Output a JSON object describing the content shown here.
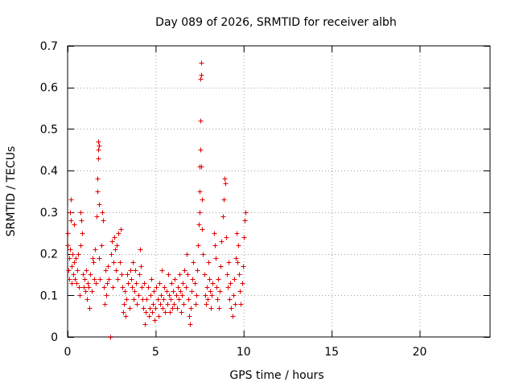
{
  "chart_data": {
    "type": "scatter",
    "title": "Day 089 of 2026, SRMTID for receiver albh",
    "xlabel": "GPS time / hours",
    "ylabel": "SRMTID / TECUs",
    "xlim": [
      0,
      24
    ],
    "ylim": [
      0,
      0.7
    ],
    "xticks": [
      0,
      5,
      10,
      15,
      20
    ],
    "xtick_labels": [
      "0",
      "5",
      "10",
      "15",
      "20"
    ],
    "yticks": [
      0,
      0.1,
      0.2,
      0.3,
      0.4,
      0.5,
      0.6,
      0.7
    ],
    "ytick_labels": [
      "0",
      "0.1",
      "0.2",
      "0.3",
      "0.4",
      "0.5",
      "0.6",
      "0.7"
    ],
    "grid": true,
    "marker": "+",
    "color": "#e00000",
    "series": [
      {
        "name": "SRMTID",
        "points": [
          [
            0.0,
            0.22
          ],
          [
            0.02,
            0.25
          ],
          [
            0.05,
            0.16
          ],
          [
            0.08,
            0.14
          ],
          [
            0.1,
            0.19
          ],
          [
            0.12,
            0.21
          ],
          [
            0.15,
            0.3
          ],
          [
            0.18,
            0.33
          ],
          [
            0.2,
            0.28
          ],
          [
            0.22,
            0.13
          ],
          [
            0.25,
            0.17
          ],
          [
            0.28,
            0.2
          ],
          [
            0.3,
            0.15
          ],
          [
            0.35,
            0.27
          ],
          [
            0.38,
            0.18
          ],
          [
            0.4,
            0.14
          ],
          [
            0.45,
            0.19
          ],
          [
            0.5,
            0.13
          ],
          [
            0.55,
            0.16
          ],
          [
            0.6,
            0.2
          ],
          [
            0.65,
            0.12
          ],
          [
            0.7,
            0.1
          ],
          [
            0.72,
            0.22
          ],
          [
            0.75,
            0.3
          ],
          [
            0.78,
            0.28
          ],
          [
            0.8,
            0.25
          ],
          [
            0.85,
            0.15
          ],
          [
            0.9,
            0.12
          ],
          [
            0.95,
            0.14
          ],
          [
            1.0,
            0.11
          ],
          [
            1.05,
            0.16
          ],
          [
            1.1,
            0.09
          ],
          [
            1.15,
            0.13
          ],
          [
            1.2,
            0.12
          ],
          [
            1.25,
            0.07
          ],
          [
            1.3,
            0.15
          ],
          [
            1.35,
            0.11
          ],
          [
            1.4,
            0.19
          ],
          [
            1.45,
            0.18
          ],
          [
            1.5,
            0.14
          ],
          [
            1.55,
            0.21
          ],
          [
            1.6,
            0.13
          ],
          [
            1.65,
            0.29
          ],
          [
            1.68,
            0.35
          ],
          [
            1.7,
            0.38
          ],
          [
            1.72,
            0.43
          ],
          [
            1.74,
            0.45
          ],
          [
            1.75,
            0.47
          ],
          [
            1.76,
            0.46
          ],
          [
            1.78,
            0.32
          ],
          [
            1.8,
            0.19
          ],
          [
            1.85,
            0.14
          ],
          [
            1.9,
            0.22
          ],
          [
            1.95,
            0.3
          ],
          [
            2.0,
            0.28
          ],
          [
            2.05,
            0.12
          ],
          [
            2.1,
            0.08
          ],
          [
            2.15,
            0.16
          ],
          [
            2.2,
            0.1
          ],
          [
            2.25,
            0.13
          ],
          [
            2.3,
            0.17
          ],
          [
            2.35,
            0.14
          ],
          [
            2.4,
            0.0
          ],
          [
            2.45,
            0.2
          ],
          [
            2.5,
            0.23
          ],
          [
            2.55,
            0.12
          ],
          [
            2.6,
            0.18
          ],
          [
            2.65,
            0.24
          ],
          [
            2.7,
            0.21
          ],
          [
            2.75,
            0.16
          ],
          [
            2.8,
            0.22
          ],
          [
            2.85,
            0.14
          ],
          [
            2.9,
            0.25
          ],
          [
            2.95,
            0.18
          ],
          [
            3.0,
            0.26
          ],
          [
            3.05,
            0.15
          ],
          [
            3.1,
            0.12
          ],
          [
            3.15,
            0.06
          ],
          [
            3.2,
            0.08
          ],
          [
            3.25,
            0.11
          ],
          [
            3.3,
            0.05
          ],
          [
            3.35,
            0.09
          ],
          [
            3.4,
            0.15
          ],
          [
            3.45,
            0.13
          ],
          [
            3.5,
            0.07
          ],
          [
            3.55,
            0.16
          ],
          [
            3.6,
            0.14
          ],
          [
            3.65,
            0.12
          ],
          [
            3.7,
            0.18
          ],
          [
            3.75,
            0.09
          ],
          [
            3.8,
            0.11
          ],
          [
            3.85,
            0.16
          ],
          [
            3.9,
            0.13
          ],
          [
            3.95,
            0.08
          ],
          [
            4.0,
            0.1
          ],
          [
            4.05,
            0.15
          ],
          [
            4.1,
            0.21
          ],
          [
            4.15,
            0.17
          ],
          [
            4.2,
            0.12
          ],
          [
            4.25,
            0.09
          ],
          [
            4.3,
            0.07
          ],
          [
            4.35,
            0.13
          ],
          [
            4.4,
            0.03
          ],
          [
            4.45,
            0.06
          ],
          [
            4.5,
            0.09
          ],
          [
            4.55,
            0.12
          ],
          [
            4.6,
            0.05
          ],
          [
            4.65,
            0.07
          ],
          [
            4.7,
            0.1
          ],
          [
            4.75,
            0.14
          ],
          [
            4.8,
            0.06
          ],
          [
            4.85,
            0.08
          ],
          [
            4.9,
            0.11
          ],
          [
            4.95,
            0.04
          ],
          [
            5.0,
            0.07
          ],
          [
            5.05,
            0.12
          ],
          [
            5.1,
            0.09
          ],
          [
            5.15,
            0.05
          ],
          [
            5.2,
            0.13
          ],
          [
            5.25,
            0.08
          ],
          [
            5.3,
            0.1
          ],
          [
            5.35,
            0.16
          ],
          [
            5.4,
            0.07
          ],
          [
            5.45,
            0.09
          ],
          [
            5.5,
            0.12
          ],
          [
            5.55,
            0.06
          ],
          [
            5.6,
            0.11
          ],
          [
            5.65,
            0.08
          ],
          [
            5.7,
            0.15
          ],
          [
            5.75,
            0.1
          ],
          [
            5.8,
            0.06
          ],
          [
            5.85,
            0.09
          ],
          [
            5.9,
            0.13
          ],
          [
            5.95,
            0.07
          ],
          [
            6.0,
            0.11
          ],
          [
            6.05,
            0.08
          ],
          [
            6.1,
            0.14
          ],
          [
            6.15,
            0.1
          ],
          [
            6.2,
            0.07
          ],
          [
            6.25,
            0.12
          ],
          [
            6.3,
            0.09
          ],
          [
            6.35,
            0.15
          ],
          [
            6.4,
            0.11
          ],
          [
            6.45,
            0.06
          ],
          [
            6.5,
            0.1
          ],
          [
            6.55,
            0.13
          ],
          [
            6.6,
            0.08
          ],
          [
            6.65,
            0.16
          ],
          [
            6.7,
            0.12
          ],
          [
            6.75,
            0.2
          ],
          [
            6.8,
            0.15
          ],
          [
            6.85,
            0.09
          ],
          [
            6.9,
            0.05
          ],
          [
            6.95,
            0.03
          ],
          [
            7.0,
            0.07
          ],
          [
            7.05,
            0.11
          ],
          [
            7.1,
            0.14
          ],
          [
            7.15,
            0.18
          ],
          [
            7.2,
            0.13
          ],
          [
            7.25,
            0.08
          ],
          [
            7.3,
            0.1
          ],
          [
            7.35,
            0.16
          ],
          [
            7.4,
            0.22
          ],
          [
            7.45,
            0.27
          ],
          [
            7.48,
            0.3
          ],
          [
            7.5,
            0.35
          ],
          [
            7.52,
            0.41
          ],
          [
            7.54,
            0.45
          ],
          [
            7.55,
            0.52
          ],
          [
            7.56,
            0.62
          ],
          [
            7.57,
            0.66
          ],
          [
            7.58,
            0.66
          ],
          [
            7.59,
            0.63
          ],
          [
            7.6,
            0.41
          ],
          [
            7.62,
            0.33
          ],
          [
            7.65,
            0.26
          ],
          [
            7.7,
            0.2
          ],
          [
            7.75,
            0.15
          ],
          [
            7.8,
            0.1
          ],
          [
            7.85,
            0.08
          ],
          [
            7.9,
            0.12
          ],
          [
            7.95,
            0.09
          ],
          [
            8.0,
            0.18
          ],
          [
            8.05,
            0.14
          ],
          [
            8.1,
            0.11
          ],
          [
            8.15,
            0.07
          ],
          [
            8.2,
            0.1
          ],
          [
            8.25,
            0.13
          ],
          [
            8.3,
            0.25
          ],
          [
            8.35,
            0.22
          ],
          [
            8.4,
            0.19
          ],
          [
            8.45,
            0.12
          ],
          [
            8.5,
            0.09
          ],
          [
            8.55,
            0.14
          ],
          [
            8.6,
            0.07
          ],
          [
            8.65,
            0.11
          ],
          [
            8.7,
            0.17
          ],
          [
            8.75,
            0.23
          ],
          [
            8.8,
            0.29
          ],
          [
            8.85,
            0.33
          ],
          [
            8.9,
            0.38
          ],
          [
            8.95,
            0.37
          ],
          [
            9.0,
            0.24
          ],
          [
            9.05,
            0.15
          ],
          [
            9.1,
            0.12
          ],
          [
            9.15,
            0.18
          ],
          [
            9.2,
            0.09
          ],
          [
            9.25,
            0.13
          ],
          [
            9.3,
            0.07
          ],
          [
            9.35,
            0.05
          ],
          [
            9.4,
            0.1
          ],
          [
            9.45,
            0.14
          ],
          [
            9.5,
            0.08
          ],
          [
            9.55,
            0.19
          ],
          [
            9.6,
            0.25
          ],
          [
            9.65,
            0.18
          ],
          [
            9.7,
            0.22
          ],
          [
            9.75,
            0.15
          ],
          [
            9.8,
            0.11
          ],
          [
            9.85,
            0.08
          ],
          [
            9.9,
            0.13
          ],
          [
            9.95,
            0.17
          ],
          [
            10.0,
            0.24
          ],
          [
            10.05,
            0.28
          ],
          [
            10.1,
            0.3
          ]
        ]
      }
    ]
  }
}
